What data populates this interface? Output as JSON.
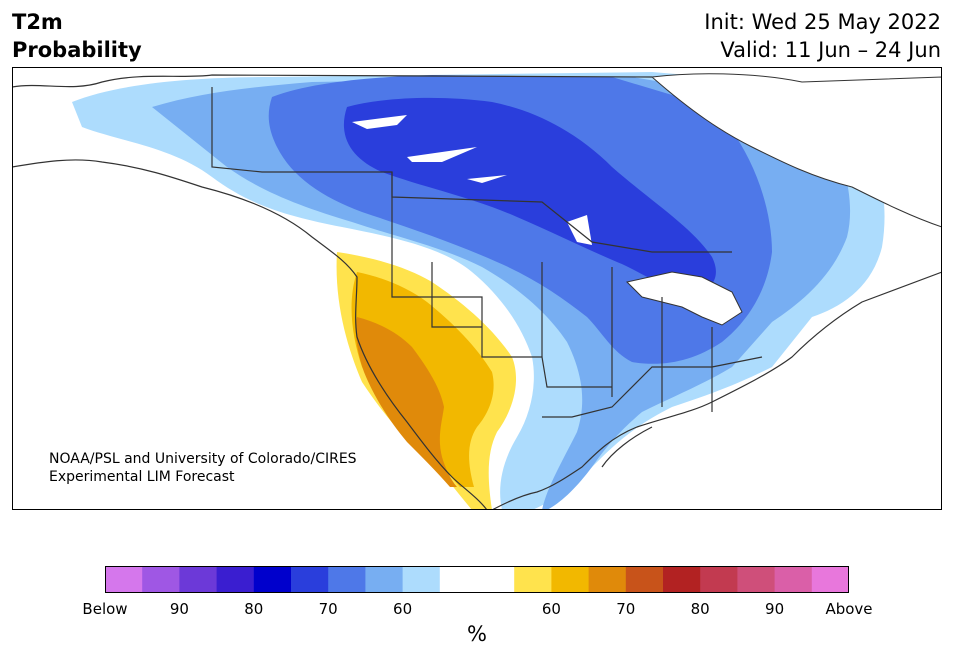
{
  "header": {
    "title_line1": "T2m",
    "title_line2": "Probability",
    "init": "Init: Wed 25 May 2022",
    "valid": "Valid: 11 Jun – 24 Jun"
  },
  "credit": {
    "line1": "NOAA/PSL and University of Colorado/CIRES",
    "line2": "Experimental LIM Forecast"
  },
  "colorbar": {
    "colors": [
      "#d577ec",
      "#9f57e4",
      "#6c39d8",
      "#3a1ed0",
      "#0000cc",
      "#2a3edc",
      "#4e78e8",
      "#77aef2",
      "#addcfd",
      "#ffffff",
      "#ffffff",
      "#ffe34d",
      "#f2b800",
      "#e08a0a",
      "#c8531a",
      "#b22222",
      "#c23a50",
      "#cf4f7a",
      "#da5fa8",
      "#e877dc"
    ],
    "labels": [
      "Below",
      "90",
      "80",
      "70",
      "60",
      "60",
      "70",
      "80",
      "90",
      "Above"
    ],
    "unit": "%"
  },
  "legend_colors": {
    "below_60": "#addcfd",
    "below_70": "#77aef2",
    "below_80": "#4e78e8",
    "below_90": "#2a3edc",
    "above_60": "#ffe34d",
    "above_70": "#f2b800",
    "above_80": "#e08a0a"
  }
}
